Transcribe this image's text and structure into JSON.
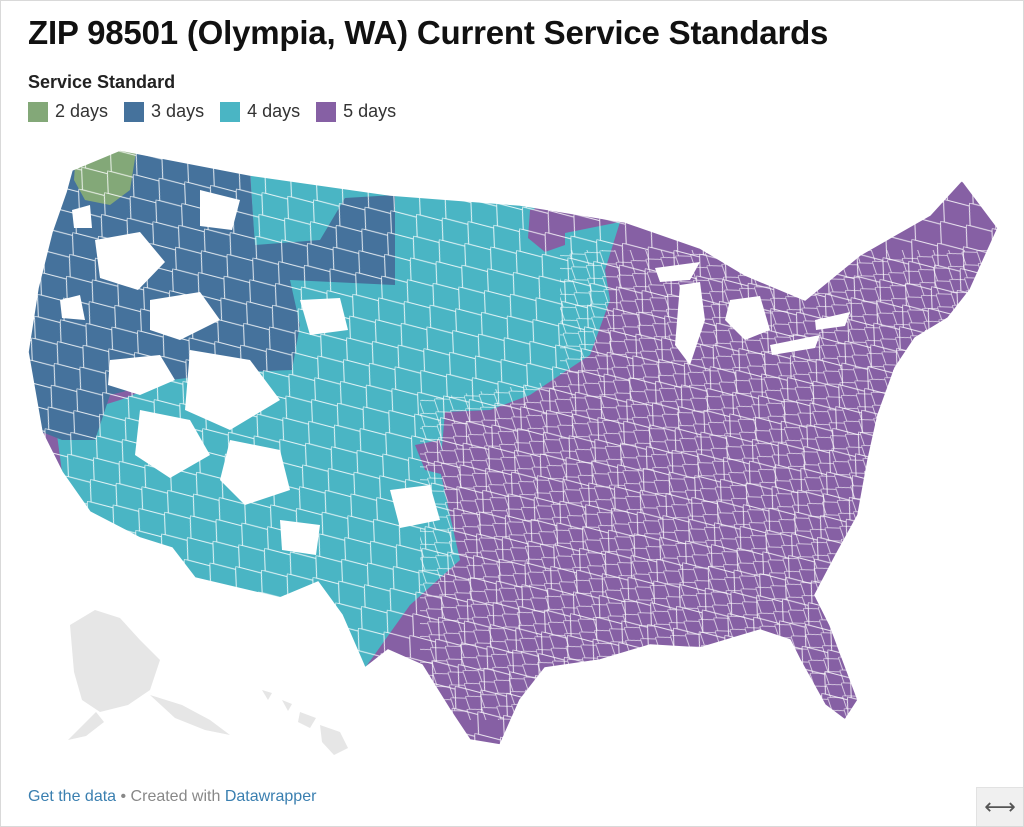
{
  "title": "ZIP 98501 (Olympia, WA) Current Service Standards",
  "legend": {
    "title": "Service Standard",
    "items": [
      {
        "label": "2 days",
        "color": "#83a878"
      },
      {
        "label": "3 days",
        "color": "#45729c"
      },
      {
        "label": "4 days",
        "color": "#4ab5c4"
      },
      {
        "label": "5 days",
        "color": "#8660a4"
      }
    ],
    "no_data_color": "#e6e6e6"
  },
  "footer": {
    "data_link": "Get the data",
    "separator": " • Created with ",
    "brand_link": "Datawrapper"
  },
  "resize_glyph": "⟷"
}
